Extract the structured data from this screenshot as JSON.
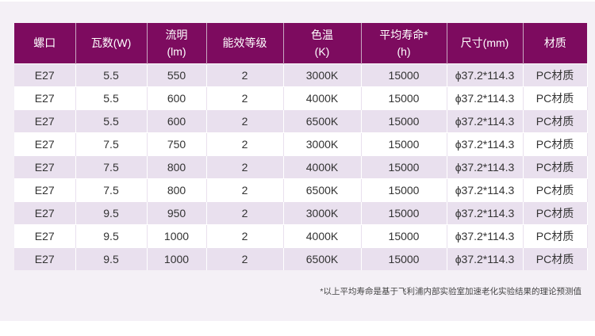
{
  "headers": [
    [
      "螺口",
      ""
    ],
    [
      "瓦数(W)",
      ""
    ],
    [
      "流明",
      "(lm)"
    ],
    [
      "能效等级",
      ""
    ],
    [
      "色温",
      "(K)"
    ],
    [
      "平均寿命*",
      "(h)"
    ],
    [
      "尺寸(mm)",
      ""
    ],
    [
      "材质",
      ""
    ]
  ],
  "rows": [
    [
      "E27",
      "5.5",
      "550",
      "2",
      "3000K",
      "15000",
      "ϕ37.2*114.3",
      "PC材质"
    ],
    [
      "E27",
      "5.5",
      "600",
      "2",
      "4000K",
      "15000",
      "ϕ37.2*114.3",
      "PC材质"
    ],
    [
      "E27",
      "5.5",
      "600",
      "2",
      "6500K",
      "15000",
      "ϕ37.2*114.3",
      "PC材质"
    ],
    [
      "E27",
      "7.5",
      "750",
      "2",
      "3000K",
      "15000",
      "ϕ37.2*114.3",
      "PC材质"
    ],
    [
      "E27",
      "7.5",
      "800",
      "2",
      "4000K",
      "15000",
      "ϕ37.2*114.3",
      "PC材质"
    ],
    [
      "E27",
      "7.5",
      "800",
      "2",
      "6500K",
      "15000",
      "ϕ37.2*114.3",
      "PC材质"
    ],
    [
      "E27",
      "9.5",
      "950",
      "2",
      "3000K",
      "15000",
      "ϕ37.2*114.3",
      "PC材质"
    ],
    [
      "E27",
      "9.5",
      "1000",
      "2",
      "4000K",
      "15000",
      "ϕ37.2*114.3",
      "PC材质"
    ],
    [
      "E27",
      "9.5",
      "1000",
      "2",
      "6500K",
      "15000",
      "ϕ37.2*114.3",
      "PC材质"
    ]
  ],
  "footnote": "*以上平均寿命是基于飞利浦内部实验室加速老化实验结果的理论预测值",
  "colors": {
    "header": "#7d0b5f",
    "row_alt": "#e9e0ee"
  }
}
